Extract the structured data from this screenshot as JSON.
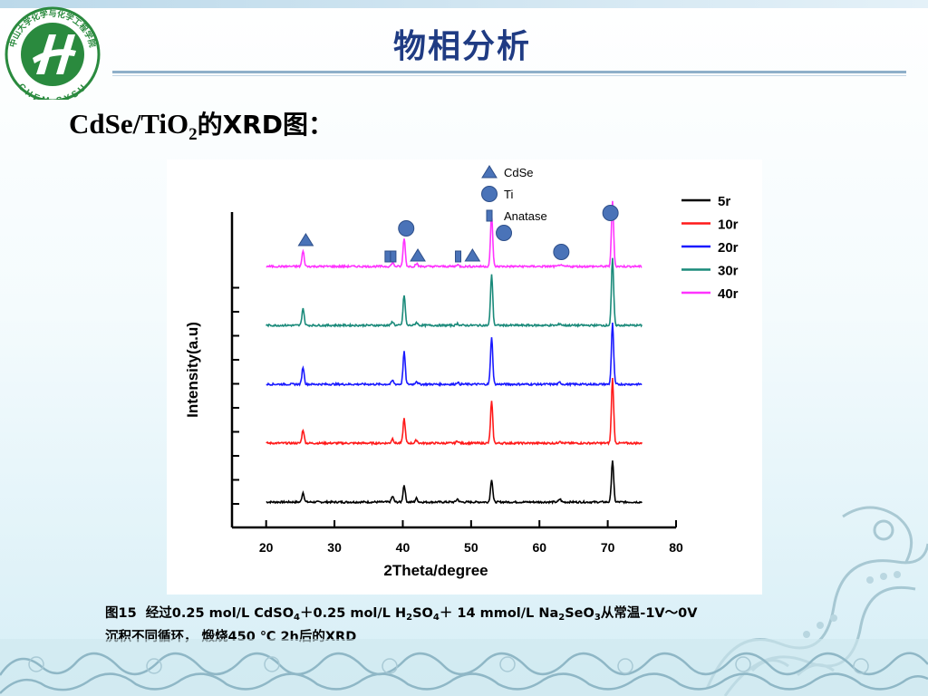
{
  "slide": {
    "title": "物相分析",
    "heading": {
      "part1": "CdSe/TiO",
      "sub": "2",
      "part2": "的XRD图："
    }
  },
  "logo": {
    "text_top": "中山大学化学与化学工程学院",
    "text_bottom": "CHEM SYSU"
  },
  "caption": {
    "fig_label": "图15",
    "seg1": "经过0.25 mol/L CdSO",
    "sub1": "4",
    "seg2": "＋0.25 mol/L H",
    "sub2": "2",
    "seg3": "SO",
    "sub3": "4",
    "seg4": "＋ 14 mmol/L Na",
    "sub4": "2",
    "seg5": "SeO",
    "sub5": "3",
    "seg6": "从常温-1V～0V",
    "line2": "沉积不同循环，  煅烧450 ℃ 2h后的XRD"
  },
  "chart_data": {
    "type": "line",
    "xlabel": "2Theta/degree",
    "ylabel": "Intensity(a.u)",
    "xlim": [
      15,
      80
    ],
    "xticks": [
      20,
      30,
      40,
      50,
      60,
      70,
      80
    ],
    "grid": false,
    "legend_position": "top-right",
    "series": [
      {
        "name": "5r",
        "color": "#000000",
        "offset": 0
      },
      {
        "name": "10r",
        "color": "#ff1a1a",
        "offset": 1
      },
      {
        "name": "20r",
        "color": "#1a1aff",
        "offset": 2
      },
      {
        "name": "30r",
        "color": "#1a8a7a",
        "offset": 3
      },
      {
        "name": "40r",
        "color": "#ff33ff",
        "offset": 4
      }
    ],
    "peaks": [
      {
        "x": 25.4,
        "heights": [
          0.25,
          0.35,
          0.45,
          0.45,
          0.4
        ]
      },
      {
        "x": 38.5,
        "heights": [
          0.15,
          0.12,
          0.1,
          0.1,
          0.1
        ]
      },
      {
        "x": 40.2,
        "heights": [
          0.45,
          0.65,
          0.85,
          0.8,
          0.75
        ]
      },
      {
        "x": 42.0,
        "heights": [
          0.1,
          0.08,
          0.08,
          0.08,
          0.08
        ]
      },
      {
        "x": 48.0,
        "heights": [
          0.08,
          0.06,
          0.05,
          0.05,
          0.05
        ]
      },
      {
        "x": 53.0,
        "heights": [
          0.6,
          1.1,
          1.25,
          1.35,
          1.35
        ]
      },
      {
        "x": 63.0,
        "heights": [
          0.08,
          0.06,
          0.05,
          0.05,
          0.05
        ]
      },
      {
        "x": 70.7,
        "heights": [
          1.1,
          1.7,
          1.6,
          1.75,
          1.7
        ]
      }
    ],
    "legend_markers": [
      {
        "label": "CdSe",
        "symbol": "triangle"
      },
      {
        "label": "Ti",
        "symbol": "circle"
      },
      {
        "label": "Anatase",
        "symbol": "square"
      }
    ],
    "annotations": [
      {
        "symbol": "triangle",
        "x": 25.8
      },
      {
        "symbol": "square",
        "x": 37.8
      },
      {
        "symbol": "square",
        "x": 38.6
      },
      {
        "symbol": "circle",
        "x": 40.5
      },
      {
        "symbol": "triangle",
        "x": 42.2
      },
      {
        "symbol": "square",
        "x": 48.1
      },
      {
        "symbol": "triangle",
        "x": 50.2
      },
      {
        "symbol": "circle",
        "x": 54.8
      },
      {
        "symbol": "circle",
        "x": 63.2
      },
      {
        "symbol": "circle",
        "x": 70.4
      }
    ],
    "colors": {
      "CdSe": "#4a73b8",
      "Ti": "#4a73b8",
      "Anatase": "#4a73b8"
    }
  }
}
